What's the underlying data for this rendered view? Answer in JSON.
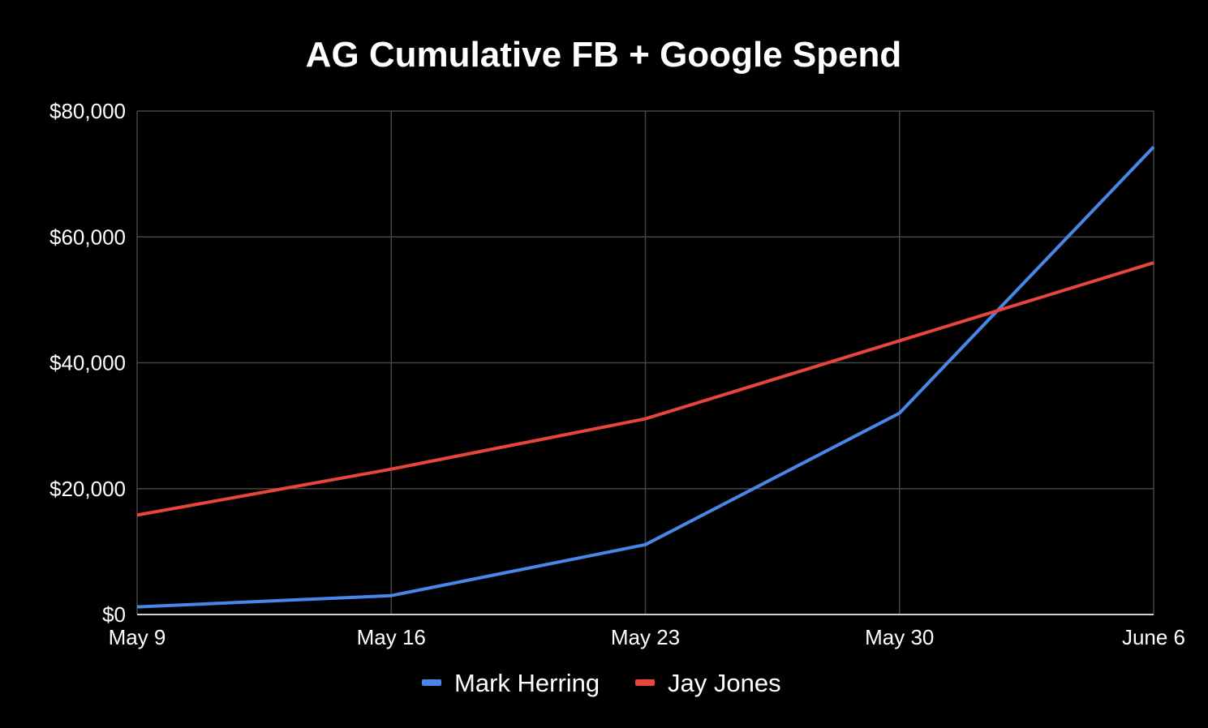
{
  "chart_data": {
    "type": "line",
    "title": "AG Cumulative FB + Google Spend",
    "xlabel": "",
    "ylabel": "",
    "categories": [
      "May 9",
      "May 16",
      "May 23",
      "May 30",
      "June 6"
    ],
    "y_ticks": [
      "$0",
      "$20,000",
      "$40,000",
      "$60,000",
      "$80,000"
    ],
    "y_tick_values": [
      0,
      20000,
      40000,
      60000,
      80000
    ],
    "ylim": [
      0,
      80000
    ],
    "grid": true,
    "legend_position": "bottom",
    "series": [
      {
        "name": "Mark Herring",
        "color": "#4a86e8",
        "values": [
          1200,
          3000,
          11100,
          32000,
          74300
        ]
      },
      {
        "name": "Jay Jones",
        "color": "#e8453c",
        "values": [
          15800,
          23100,
          31100,
          43500,
          55900
        ]
      }
    ]
  },
  "colors": {
    "background": "#000000",
    "grid": "#444444",
    "axis": "#cccccc",
    "text": "#ffffff"
  }
}
